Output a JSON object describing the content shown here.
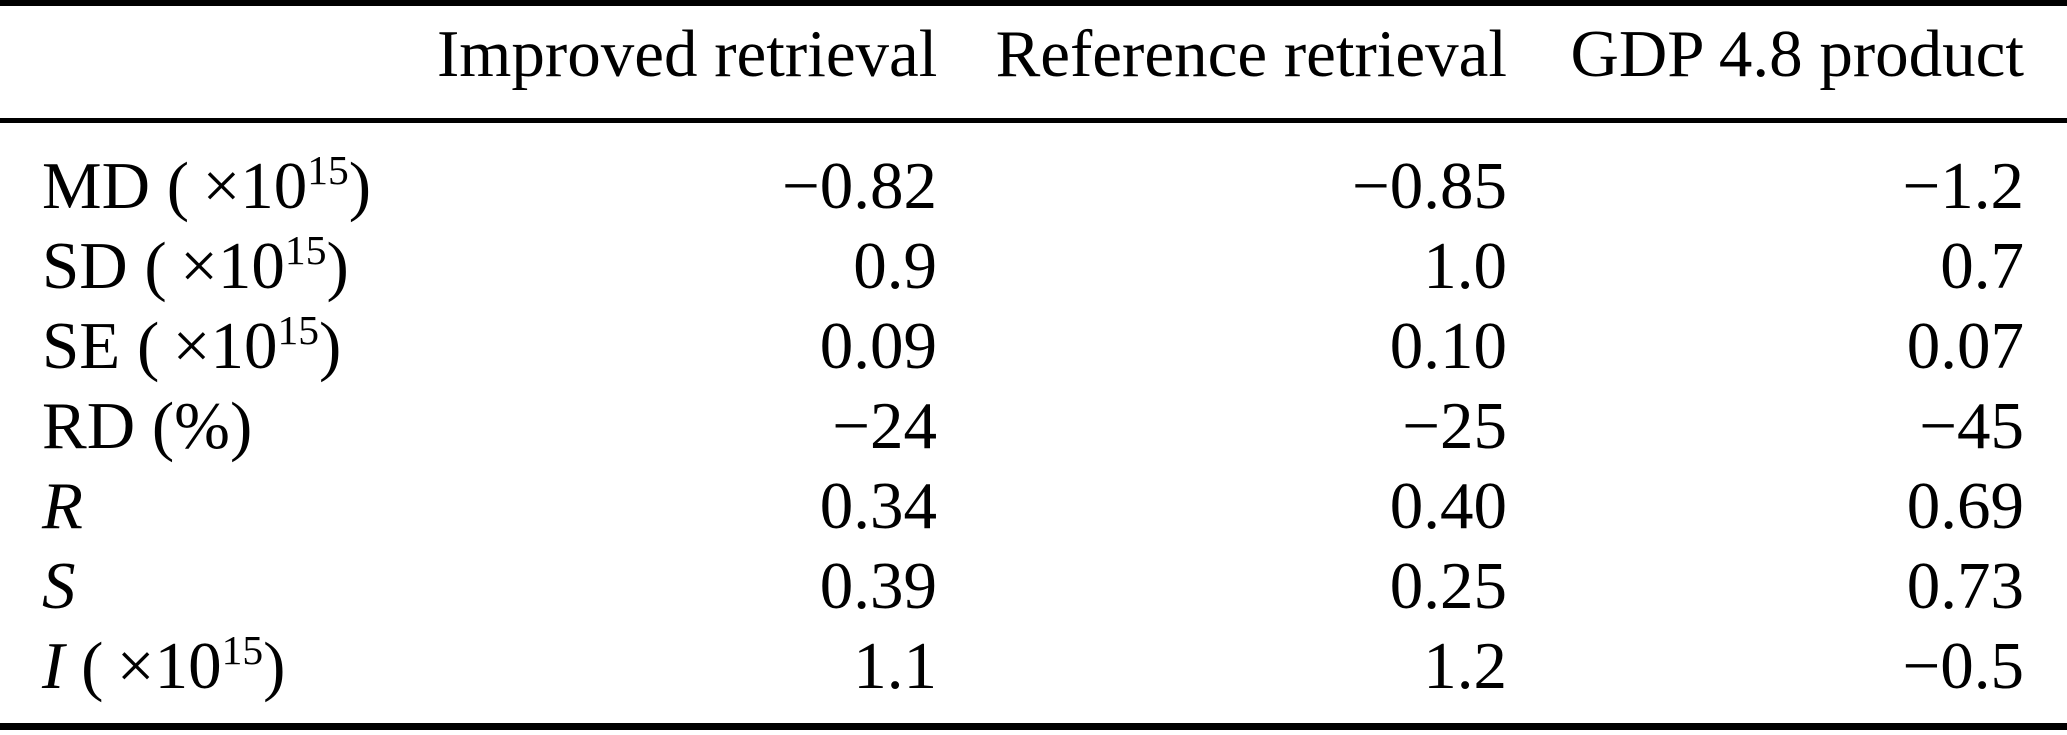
{
  "table": {
    "columns": [
      {
        "label": ""
      },
      {
        "label": "Improved retrieval"
      },
      {
        "label": "Reference retrieval"
      },
      {
        "label": "GDP 4.8 product"
      }
    ],
    "rows": [
      {
        "label": {
          "sym": "MD",
          "style": "normal",
          "pre": " ( ×10",
          "sup": "15",
          "post": ")"
        },
        "values": [
          "−0.82",
          "−0.85",
          "−1.2"
        ]
      },
      {
        "label": {
          "sym": "SD",
          "style": "normal",
          "pre": " ( ×10",
          "sup": "15",
          "post": ")"
        },
        "values": [
          "0.9",
          "1.0",
          "0.7"
        ]
      },
      {
        "label": {
          "sym": "SE",
          "style": "normal",
          "pre": " ( ×10",
          "sup": "15",
          "post": ")"
        },
        "values": [
          "0.09",
          "0.10",
          "0.07"
        ]
      },
      {
        "label": {
          "sym": "RD",
          "style": "normal",
          "pre": " (%)",
          "sup": "",
          "post": ""
        },
        "values": [
          "−24",
          "−25",
          "−45"
        ]
      },
      {
        "label": {
          "sym": "R",
          "style": "italic",
          "pre": "",
          "sup": "",
          "post": ""
        },
        "values": [
          "0.34",
          "0.40",
          "0.69"
        ]
      },
      {
        "label": {
          "sym": "S",
          "style": "italic",
          "pre": "",
          "sup": "",
          "post": ""
        },
        "values": [
          "0.39",
          "0.25",
          "0.73"
        ]
      },
      {
        "label": {
          "sym": "I",
          "style": "italic",
          "pre": " ( ×10",
          "sup": "15",
          "post": ")"
        },
        "values": [
          "1.1",
          "1.2",
          "−0.5"
        ]
      }
    ]
  },
  "chart_data": {
    "type": "table",
    "title": "",
    "columns": [
      "",
      "Improved retrieval",
      "Reference retrieval",
      "GDP 4.8 product"
    ],
    "rows": [
      {
        "metric": "MD (×10^15)",
        "values": [
          -0.82,
          -0.85,
          -1.2
        ]
      },
      {
        "metric": "SD (×10^15)",
        "values": [
          0.9,
          1.0,
          0.7
        ]
      },
      {
        "metric": "SE (×10^15)",
        "values": [
          0.09,
          0.1,
          0.07
        ]
      },
      {
        "metric": "RD (%)",
        "values": [
          -24,
          -25,
          -45
        ]
      },
      {
        "metric": "R",
        "values": [
          0.34,
          0.4,
          0.69
        ]
      },
      {
        "metric": "S",
        "values": [
          0.39,
          0.25,
          0.73
        ]
      },
      {
        "metric": "I (×10^15)",
        "values": [
          1.1,
          1.2,
          -0.5
        ]
      }
    ]
  }
}
